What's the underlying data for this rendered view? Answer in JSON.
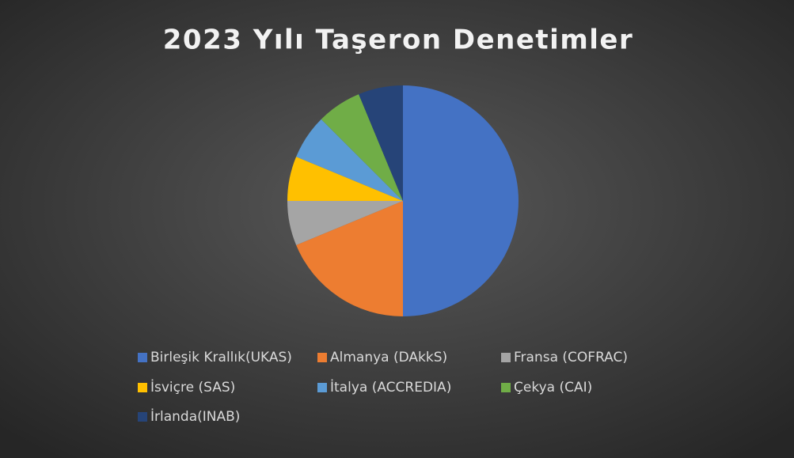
{
  "chart_data": {
    "type": "pie",
    "title": "2023 Yılı Taşeron Denetimler",
    "categories": [
      "Birleşik Krallık(UKAS)",
      "Almanya (DAkkS)",
      "Fransa (COFRAC)",
      "İsviçre (SAS)",
      "İtalya (ACCREDIA)",
      "Çekya (CAI)",
      "İrlanda(INAB)"
    ],
    "values": [
      8,
      3,
      1,
      1,
      1,
      1,
      1
    ],
    "colors": [
      "#4472c4",
      "#ed7d31",
      "#a5a5a5",
      "#ffc000",
      "#5b9bd5",
      "#70ad47",
      "#264478"
    ],
    "legend": "bottom"
  }
}
